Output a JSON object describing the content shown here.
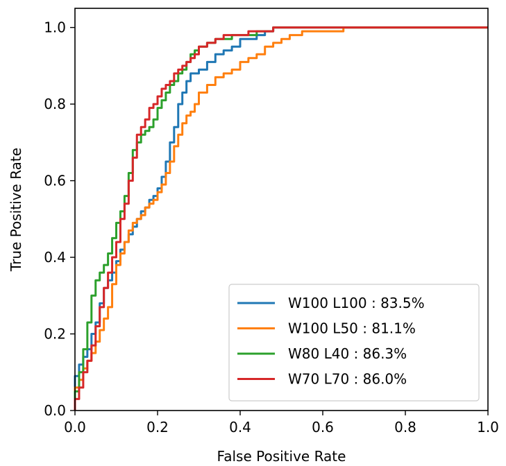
{
  "chart_data": {
    "type": "line",
    "title": "",
    "xlabel": "False Positive Rate",
    "ylabel": "True Positive Rate",
    "xlim": [
      0.0,
      1.0
    ],
    "ylim": [
      0.0,
      1.05
    ],
    "x_ticks": [
      "0.0",
      "0.2",
      "0.4",
      "0.6",
      "0.8",
      "1.0"
    ],
    "y_ticks": [
      "0.0",
      "0.2",
      "0.4",
      "0.6",
      "0.8",
      "1.0"
    ],
    "grid": false,
    "legend_position": "lower-right",
    "series": [
      {
        "name": "W100 L100 : 83.5%",
        "color": "#1f77b4",
        "x": [
          0.0,
          0.0,
          0.01,
          0.02,
          0.03,
          0.04,
          0.05,
          0.06,
          0.07,
          0.08,
          0.09,
          0.1,
          0.11,
          0.12,
          0.13,
          0.14,
          0.15,
          0.16,
          0.17,
          0.18,
          0.19,
          0.2,
          0.21,
          0.22,
          0.23,
          0.24,
          0.25,
          0.26,
          0.27,
          0.28,
          0.29,
          0.3,
          0.32,
          0.34,
          0.36,
          0.38,
          0.4,
          0.42,
          0.44,
          0.46,
          0.48,
          0.5,
          0.55,
          0.6,
          0.7,
          0.8,
          0.9,
          1.0
        ],
        "y": [
          0.0,
          0.06,
          0.09,
          0.12,
          0.14,
          0.16,
          0.2,
          0.23,
          0.28,
          0.32,
          0.34,
          0.36,
          0.39,
          0.42,
          0.44,
          0.46,
          0.48,
          0.5,
          0.52,
          0.53,
          0.55,
          0.56,
          0.58,
          0.61,
          0.65,
          0.7,
          0.74,
          0.8,
          0.83,
          0.86,
          0.88,
          0.88,
          0.89,
          0.91,
          0.93,
          0.94,
          0.95,
          0.97,
          0.97,
          0.98,
          0.99,
          1.0,
          1.0,
          1.0,
          1.0,
          1.0,
          1.0,
          1.0
        ]
      },
      {
        "name": "W100 L50 : 81.1%",
        "color": "#ff7f0e",
        "x": [
          0.0,
          0.0,
          0.01,
          0.02,
          0.03,
          0.04,
          0.05,
          0.06,
          0.07,
          0.08,
          0.09,
          0.1,
          0.11,
          0.12,
          0.13,
          0.14,
          0.15,
          0.16,
          0.17,
          0.18,
          0.19,
          0.2,
          0.21,
          0.22,
          0.23,
          0.24,
          0.25,
          0.26,
          0.27,
          0.28,
          0.29,
          0.3,
          0.32,
          0.34,
          0.36,
          0.38,
          0.4,
          0.42,
          0.44,
          0.46,
          0.48,
          0.5,
          0.52,
          0.55,
          0.58,
          0.6,
          0.65,
          0.7,
          0.8,
          0.9,
          1.0
        ],
        "y": [
          0.0,
          0.03,
          0.06,
          0.08,
          0.11,
          0.13,
          0.15,
          0.18,
          0.21,
          0.24,
          0.27,
          0.33,
          0.38,
          0.41,
          0.44,
          0.47,
          0.49,
          0.5,
          0.51,
          0.53,
          0.54,
          0.55,
          0.57,
          0.59,
          0.62,
          0.65,
          0.69,
          0.72,
          0.75,
          0.77,
          0.78,
          0.8,
          0.83,
          0.85,
          0.87,
          0.88,
          0.89,
          0.91,
          0.92,
          0.93,
          0.95,
          0.96,
          0.97,
          0.98,
          0.99,
          0.99,
          0.99,
          1.0,
          1.0,
          1.0,
          1.0
        ]
      },
      {
        "name": "W80 L40 : 86.3%",
        "color": "#2ca02c",
        "x": [
          0.0,
          0.0,
          0.01,
          0.02,
          0.03,
          0.04,
          0.05,
          0.06,
          0.07,
          0.08,
          0.09,
          0.1,
          0.11,
          0.12,
          0.13,
          0.14,
          0.15,
          0.16,
          0.17,
          0.18,
          0.19,
          0.2,
          0.21,
          0.22,
          0.23,
          0.24,
          0.25,
          0.26,
          0.27,
          0.28,
          0.29,
          0.3,
          0.32,
          0.34,
          0.36,
          0.38,
          0.4,
          0.42,
          0.44,
          0.46,
          0.48,
          0.5,
          0.55,
          0.6,
          0.7,
          0.8,
          0.9,
          1.0
        ],
        "y": [
          0.0,
          0.02,
          0.05,
          0.1,
          0.16,
          0.23,
          0.3,
          0.34,
          0.36,
          0.38,
          0.41,
          0.45,
          0.49,
          0.52,
          0.56,
          0.62,
          0.68,
          0.7,
          0.72,
          0.73,
          0.74,
          0.76,
          0.79,
          0.81,
          0.83,
          0.85,
          0.86,
          0.88,
          0.89,
          0.91,
          0.93,
          0.94,
          0.95,
          0.96,
          0.97,
          0.97,
          0.98,
          0.98,
          0.98,
          0.99,
          0.99,
          1.0,
          1.0,
          1.0,
          1.0,
          1.0,
          1.0,
          1.0
        ]
      },
      {
        "name": "W70 L70 : 86.0%",
        "color": "#d62728",
        "x": [
          0.0,
          0.0,
          0.01,
          0.02,
          0.03,
          0.04,
          0.05,
          0.06,
          0.07,
          0.08,
          0.09,
          0.1,
          0.11,
          0.12,
          0.13,
          0.14,
          0.15,
          0.16,
          0.17,
          0.18,
          0.19,
          0.2,
          0.21,
          0.22,
          0.23,
          0.24,
          0.25,
          0.26,
          0.27,
          0.28,
          0.29,
          0.3,
          0.32,
          0.34,
          0.36,
          0.38,
          0.4,
          0.42,
          0.44,
          0.46,
          0.48,
          0.5,
          0.55,
          0.6,
          0.7,
          0.8,
          0.9,
          1.0
        ],
        "y": [
          0.0,
          0.01,
          0.03,
          0.06,
          0.1,
          0.13,
          0.17,
          0.22,
          0.27,
          0.32,
          0.36,
          0.4,
          0.44,
          0.5,
          0.54,
          0.6,
          0.66,
          0.72,
          0.74,
          0.76,
          0.79,
          0.8,
          0.82,
          0.84,
          0.85,
          0.86,
          0.88,
          0.89,
          0.9,
          0.91,
          0.92,
          0.93,
          0.95,
          0.96,
          0.97,
          0.98,
          0.98,
          0.98,
          0.99,
          0.99,
          0.99,
          1.0,
          1.0,
          1.0,
          1.0,
          1.0,
          1.0,
          1.0
        ]
      }
    ]
  }
}
